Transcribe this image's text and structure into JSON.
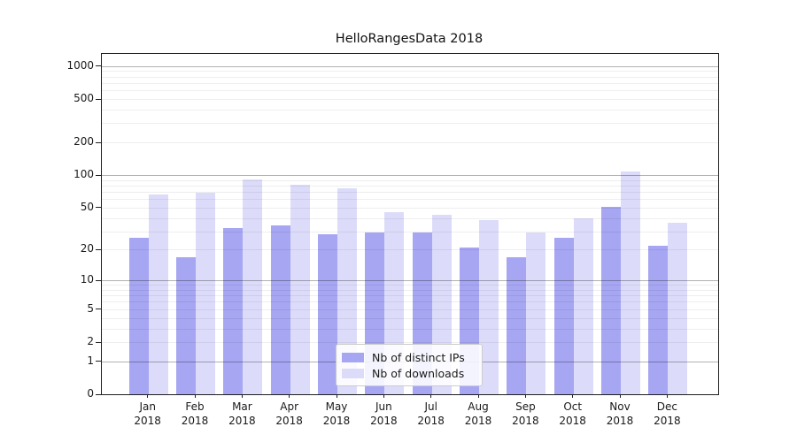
{
  "title": "HelloRangesData 2018",
  "chart_data": {
    "type": "bar",
    "title": "HelloRangesData 2018",
    "categories": [
      "Jan",
      "Feb",
      "Mar",
      "Apr",
      "May",
      "Jun",
      "Jul",
      "Aug",
      "Sep",
      "Oct",
      "Nov",
      "Dec"
    ],
    "category_year": "2018",
    "series": [
      {
        "name": "Nb of distinct IPs",
        "color": "#a6a6f2",
        "values": [
          26,
          17,
          32,
          34,
          28,
          29,
          29,
          21,
          17,
          26,
          51,
          22
        ]
      },
      {
        "name": "Nb of downloads",
        "color": "#dcdcfa",
        "values": [
          66,
          69,
          91,
          82,
          75,
          45,
          43,
          38,
          29,
          40,
          108,
          36
        ]
      }
    ],
    "y_scale": "log1p",
    "ylim": [
      0,
      1293
    ],
    "y_ticks": [
      0,
      1,
      2,
      5,
      10,
      20,
      50,
      100,
      200,
      500,
      1000
    ],
    "gridlines_major": [
      1,
      10,
      100,
      1000
    ],
    "gridlines_minor": [
      2,
      3,
      4,
      5,
      6,
      7,
      8,
      9,
      20,
      30,
      40,
      50,
      60,
      70,
      80,
      90,
      200,
      300,
      400,
      500,
      600,
      700,
      800,
      900
    ],
    "grid": true,
    "legend_position": "inside-bottom-center",
    "xlabel": "",
    "ylabel": ""
  }
}
